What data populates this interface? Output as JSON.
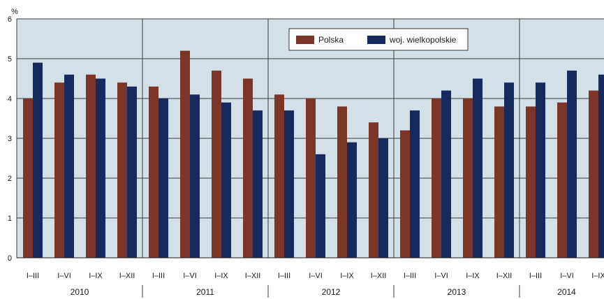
{
  "chart_data": {
    "type": "bar",
    "unit_label": "%",
    "ylim": [
      0,
      6
    ],
    "yticks": [
      0,
      1,
      2,
      3,
      4,
      5,
      6
    ],
    "grid": true,
    "legend_position": "top-right",
    "colors": {
      "plot_background": "#d3e0e7",
      "Polska": "#7b3628",
      "woj. wielkopolskie": "#172a5e"
    },
    "categories": [
      "I–III",
      "I–VI",
      "I–IX",
      "I–XII",
      "I–III",
      "I–VI",
      "I–IX",
      "I–XII",
      "I–III",
      "I–VI",
      "I–IX",
      "I–XII",
      "I–III",
      "I–VI",
      "I–IX",
      "I–XII",
      "I–III",
      "I–VI",
      "I–IX"
    ],
    "groups": [
      {
        "label": "2010",
        "count": 4
      },
      {
        "label": "2011",
        "count": 4
      },
      {
        "label": "2012",
        "count": 4
      },
      {
        "label": "2013",
        "count": 4
      },
      {
        "label": "2014",
        "count": 3
      }
    ],
    "series": [
      {
        "name": "Polska",
        "values": [
          4.0,
          4.4,
          4.6,
          4.4,
          4.3,
          5.2,
          4.7,
          4.5,
          4.1,
          4.0,
          3.8,
          3.4,
          3.2,
          4.0,
          4.0,
          3.8,
          3.8,
          3.9,
          4.2
        ]
      },
      {
        "name": "woj. wielkopolskie",
        "values": [
          4.9,
          4.6,
          4.5,
          4.3,
          4.0,
          4.1,
          3.9,
          3.7,
          3.7,
          2.6,
          2.9,
          3.0,
          3.7,
          4.2,
          4.5,
          4.4,
          4.4,
          4.7,
          4.6
        ]
      }
    ]
  }
}
